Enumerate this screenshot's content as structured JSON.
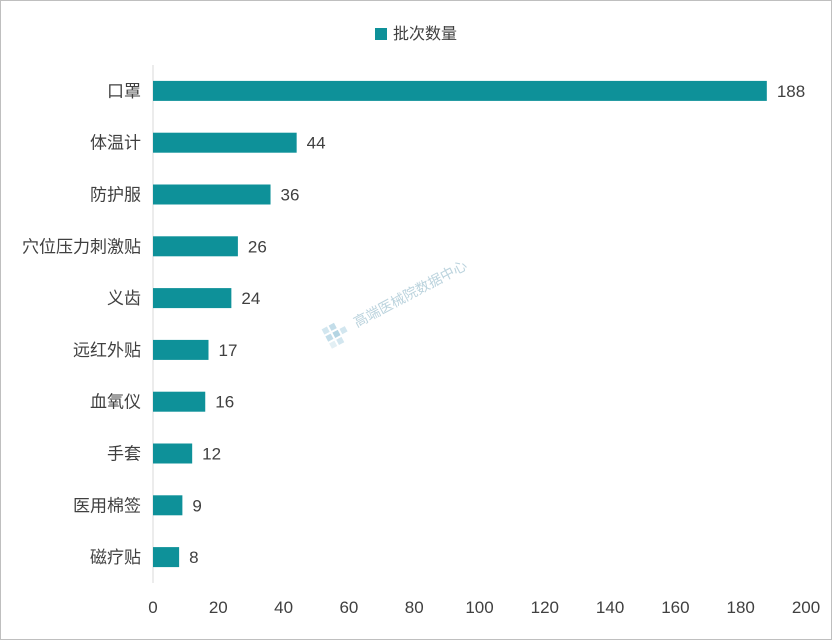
{
  "legend": {
    "label": "批次数量",
    "color": "#0E9199"
  },
  "watermark": {
    "text": "高端医械院数据中心",
    "icon": "watermark-logo-icon"
  },
  "chart_data": {
    "type": "bar",
    "orientation": "horizontal",
    "categories": [
      "口罩",
      "体温计",
      "防护服",
      "穴位压力刺激贴",
      "义齿",
      "远红外贴",
      "血氧仪",
      "手套",
      "医用棉签",
      "磁疗贴"
    ],
    "series": [
      {
        "name": "批次数量",
        "values": [
          188,
          44,
          36,
          26,
          24,
          17,
          16,
          12,
          9,
          8
        ],
        "color": "#0E9199"
      }
    ],
    "xlim": [
      0,
      200
    ],
    "x_ticks": [
      0,
      20,
      40,
      60,
      80,
      100,
      120,
      140,
      160,
      180,
      200
    ],
    "xlabel": "",
    "ylabel": "",
    "data_labels": true,
    "grid": false,
    "legend_position": "top-center"
  }
}
